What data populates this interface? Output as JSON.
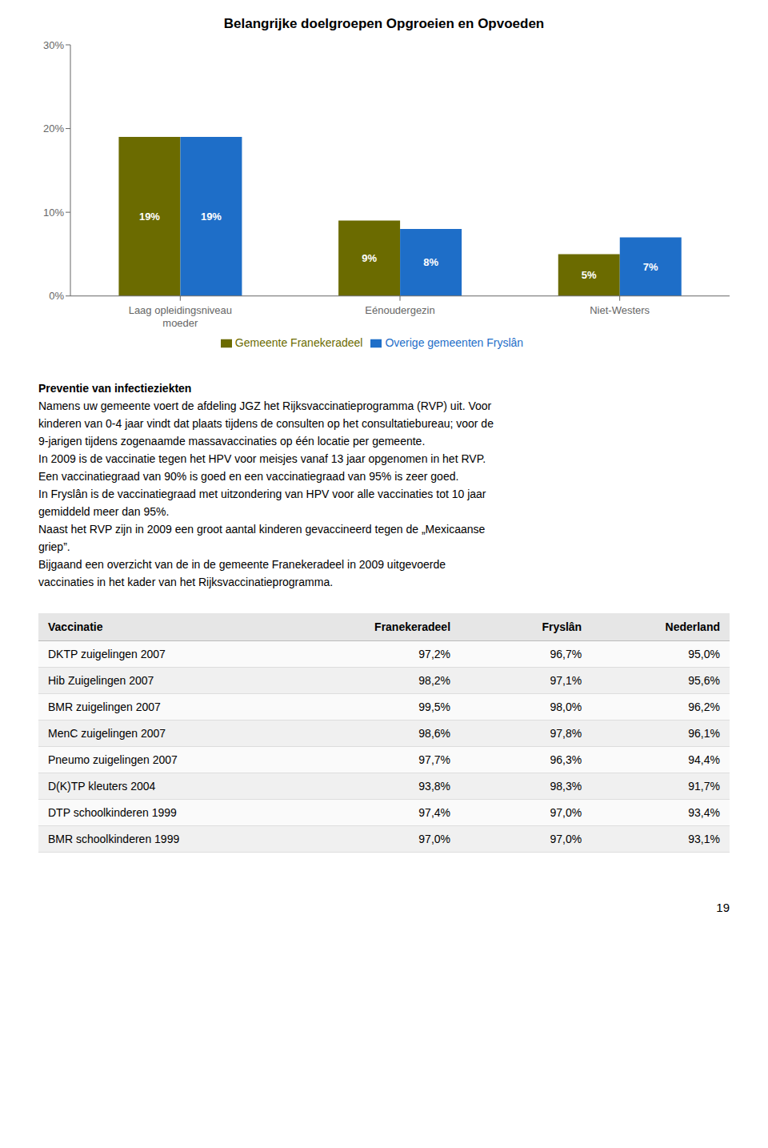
{
  "chart_data": {
    "type": "bar",
    "title": "Belangrijke doelgroepen Opgroeien en Opvoeden",
    "categories": [
      "Laag opleidingsniveau\nmoeder",
      "Eénoudergezin",
      "Niet-Westers"
    ],
    "series": [
      {
        "name": "Gemeente Franekeradeel",
        "color": "#6b6b00",
        "values": [
          19,
          9,
          5
        ],
        "value_labels": [
          "19%",
          "9%",
          "5%"
        ]
      },
      {
        "name": "Overige gemeenten Fryslân",
        "color": "#1e6ec8",
        "values": [
          19,
          8,
          7
        ],
        "value_labels": [
          "19%",
          "8%",
          "7%"
        ]
      }
    ],
    "ylim": [
      0,
      30
    ],
    "yticks": [
      {
        "value": 0,
        "label": "0%"
      },
      {
        "value": 10,
        "label": "10%"
      },
      {
        "value": 20,
        "label": "20%"
      },
      {
        "value": 30,
        "label": "30%"
      }
    ],
    "grid": false,
    "legend": "bottom",
    "data_labels": true
  },
  "text_block": {
    "title": "Preventie van infectieziekten",
    "lines": [
      "Namens uw gemeente voert de afdeling JGZ het Rijksvaccinatieprogramma (RVP) uit. Voor",
      "kinderen van 0-4 jaar vindt dat plaats tijdens de consulten op het consultatiebureau; voor de",
      "9-jarigen tijdens zogenaamde massavaccinaties op één locatie per gemeente.",
      "In 2009 is de vaccinatie tegen het HPV voor meisjes vanaf 13 jaar opgenomen in het RVP.",
      "Een vaccinatiegraad van 90% is goed en een vaccinatiegraad van 95% is zeer goed.",
      "In Fryslân is de vaccinatiegraad met uitzondering van HPV voor alle vaccinaties tot 10 jaar",
      "gemiddeld meer dan 95%.",
      "Naast het RVP zijn in 2009 een groot aantal kinderen gevaccineerd tegen de „Mexicaanse",
      "griep”.",
      "Bijgaand een overzicht van de in de gemeente Franekeradeel in 2009 uitgevoerde",
      "vaccinaties in het kader van het Rijksvaccinatieprogramma."
    ]
  },
  "table": {
    "headers": [
      "Vaccinatie",
      "Franekeradeel",
      "Fryslân",
      "Nederland"
    ],
    "rows": [
      [
        "DKTP zuigelingen 2007",
        "97,2%",
        "96,7%",
        "95,0%"
      ],
      [
        "Hib Zuigelingen 2007",
        "98,2%",
        "97,1%",
        "95,6%"
      ],
      [
        "BMR zuigelingen 2007",
        "99,5%",
        "98,0%",
        "96,2%"
      ],
      [
        "MenC zuigelingen 2007",
        "98,6%",
        "97,8%",
        "96,1%"
      ],
      [
        "Pneumo zuigelingen 2007",
        "97,7%",
        "96,3%",
        "94,4%"
      ],
      [
        "D(K)TP kleuters 2004",
        "93,8%",
        "98,3%",
        "91,7%"
      ],
      [
        "DTP schoolkinderen 1999",
        "97,4%",
        "97,0%",
        "93,4%"
      ],
      [
        "BMR schoolkinderen 1999",
        "97,0%",
        "97,0%",
        "93,1%"
      ]
    ]
  },
  "page_number": "19"
}
